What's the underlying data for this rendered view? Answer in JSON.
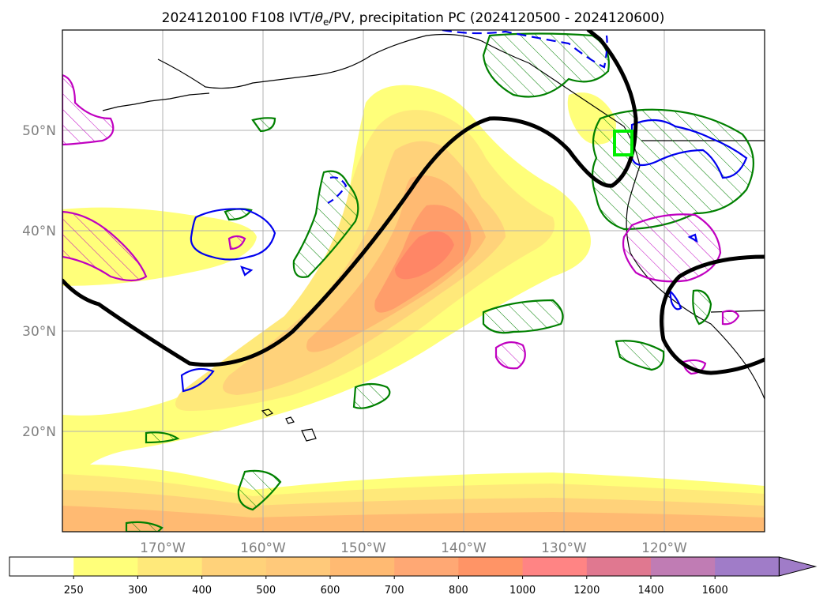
{
  "figure": {
    "title": "2024120100 F108 IVT/θe/PV, precipitation PC (2024120500 - 2024120600)",
    "title_prefix": "2024120100 F108 IVT/",
    "title_theta": "θ",
    "title_subscript": "e",
    "title_suffix": "/PV, precipitation PC (2024120500 - 2024120600)"
  },
  "map": {
    "lon_range": [
      -180,
      -110
    ],
    "lat_range": [
      10,
      60
    ],
    "lon_ticks": [
      {
        "value": -170,
        "label": "170°W"
      },
      {
        "value": -160,
        "label": "160°W"
      },
      {
        "value": -150,
        "label": "150°W"
      },
      {
        "value": -140,
        "label": "140°W"
      },
      {
        "value": -130,
        "label": "130°W"
      },
      {
        "value": -120,
        "label": "120°W"
      }
    ],
    "lat_ticks": [
      {
        "value": 20,
        "label": "20°N"
      },
      {
        "value": 30,
        "label": "30°N"
      },
      {
        "value": 40,
        "label": "40°N"
      },
      {
        "value": 50,
        "label": "50°N"
      }
    ],
    "grid": true,
    "ivt_levels": [
      250,
      300,
      400,
      500,
      600,
      700,
      800,
      1000,
      1200
    ],
    "ivt_colors": [
      "#ffff7a",
      "#ffe97a",
      "#ffd27a",
      "#ffba72",
      "#ff9d6a",
      "#ff8666"
    ],
    "contour_colors": {
      "theta_e": "#000000",
      "pv_blue": "#0000ee",
      "precip_green": "#008000",
      "precip_magenta": "#c000c0",
      "target_box": "#00ee00"
    }
  },
  "colorbar": {
    "levels": [
      "250",
      "300",
      "400",
      "500",
      "600",
      "700",
      "800",
      "1000",
      "1200",
      "1400",
      "1600"
    ],
    "colors": [
      "#ffffff",
      "#ffff7a",
      "#ffe97a",
      "#ffd27a",
      "#ffc97a",
      "#ffba72",
      "#ffa874",
      "#ff9466",
      "#ff8484",
      "#e07890",
      "#c07cb4",
      "#a07cc8"
    ]
  }
}
